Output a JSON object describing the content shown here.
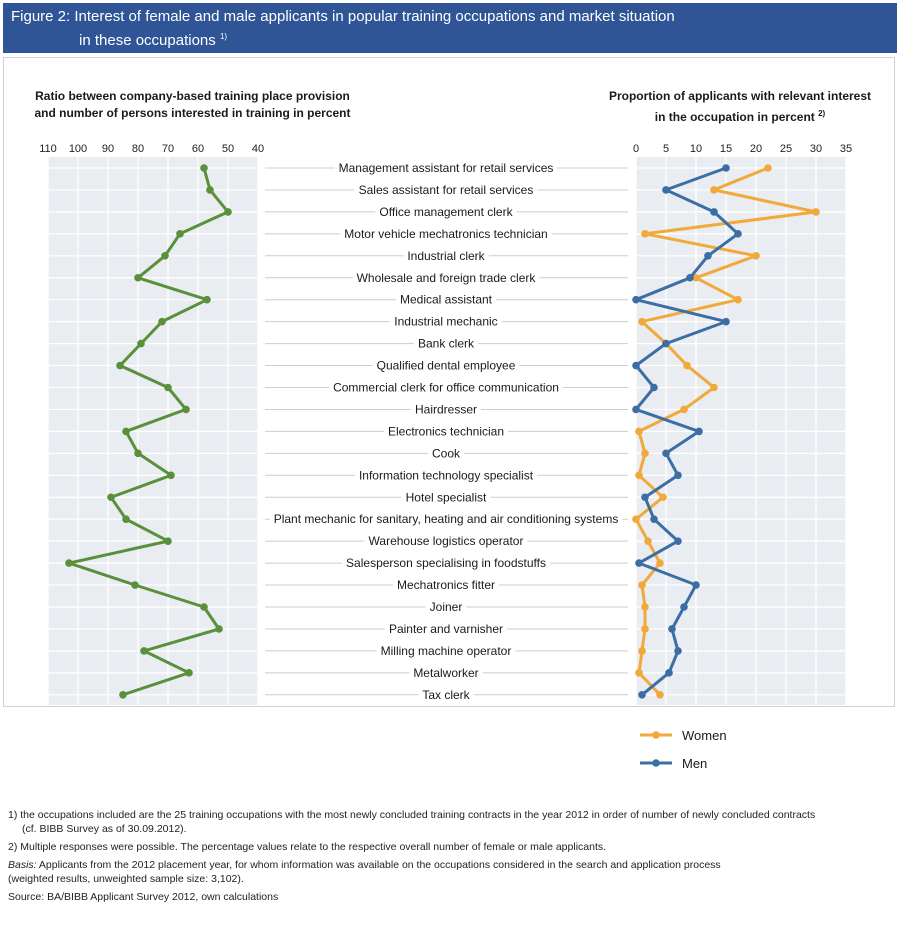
{
  "figure": {
    "title_line1": "Figure 2: Interest of female and male applicants in popular training occupations and market situation",
    "title_line2": "in these occupations",
    "title_note": "1)"
  },
  "left_panel": {
    "title_line1": "Ratio between company-based training place provision",
    "title_line2": "and number of persons interested in training in percent"
  },
  "right_panel": {
    "title_line1": "Proportion of applicants with relevant interest",
    "title_line2": "in the occupation in percent",
    "title_note": "2)"
  },
  "chart_data": [
    {
      "type": "line",
      "panel": "left",
      "axis_reversed": true,
      "xlim": [
        110,
        40
      ],
      "x_ticks": [
        110,
        100,
        90,
        80,
        70,
        60,
        50,
        40
      ],
      "categories": [
        "Management assistant for retail services",
        "Sales assistant for retail services",
        "Office management clerk",
        "Motor vehicle mechatronics technician",
        "Industrial clerk",
        "Wholesale and foreign trade clerk",
        "Medical assistant",
        "Industrial mechanic",
        "Bank clerk",
        "Qualified dental employee",
        "Commercial clerk for office communication",
        "Hairdresser",
        "Electronics technician",
        "Cook",
        "Information technology specialist",
        "Hotel specialist",
        "Plant mechanic for sanitary, heating and air conditioning systems",
        "Warehouse logistics operator",
        "Salesperson specialising in foodstuffs",
        "Mechatronics fitter",
        "Joiner",
        "Painter and varnisher",
        "Milling machine operator",
        "Metalworker",
        "Tax clerk"
      ],
      "series": [
        {
          "values": [
            58,
            56,
            50,
            66,
            71,
            80,
            57,
            72,
            79,
            86,
            70,
            64,
            84,
            80,
            69,
            89,
            84,
            70,
            103,
            81,
            58,
            53,
            78,
            63,
            85
          ],
          "color": "#5a8f3c"
        }
      ]
    },
    {
      "type": "line",
      "panel": "right",
      "xlim": [
        0,
        35
      ],
      "x_ticks": [
        0,
        5,
        10,
        15,
        20,
        25,
        30,
        35
      ],
      "series": [
        {
          "name": "Women",
          "color": "#f0a93a",
          "values": [
            22,
            13,
            30,
            1.5,
            20,
            10,
            17,
            1,
            5,
            8.5,
            13,
            8,
            0.5,
            1.5,
            0.5,
            4.5,
            0,
            2,
            4,
            1,
            1.5,
            1.5,
            1,
            0.5,
            4
          ]
        },
        {
          "name": "Men",
          "color": "#3c6ea5",
          "values": [
            15,
            5,
            13,
            17,
            12,
            9,
            0,
            15,
            5,
            0,
            3,
            0,
            10.5,
            5,
            7,
            1.5,
            3,
            7,
            0.5,
            10,
            8,
            6,
            7,
            5.5,
            1
          ]
        }
      ]
    }
  ],
  "footnotes": {
    "n1_line1": "1)  the occupations included are the 25 training occupations with the most newly concluded training contracts in the year 2012 in order of number of newly concluded contracts",
    "n1_line2": "(cf. BIBB Survey as of 30.09.2012).",
    "n2": "2)  Multiple responses were possible. The percentage values relate to the respective overall number of female or male applicants.",
    "basis_label": "Basis:",
    "basis_line1": " Applicants from the 2012 placement year, for whom information was available on the occupations considered in the search and application process",
    "basis_line2": "(weighted results, unweighted sample size: 3,102).",
    "source": "Source: BA/BIBB Applicant Survey 2012, own calculations"
  }
}
